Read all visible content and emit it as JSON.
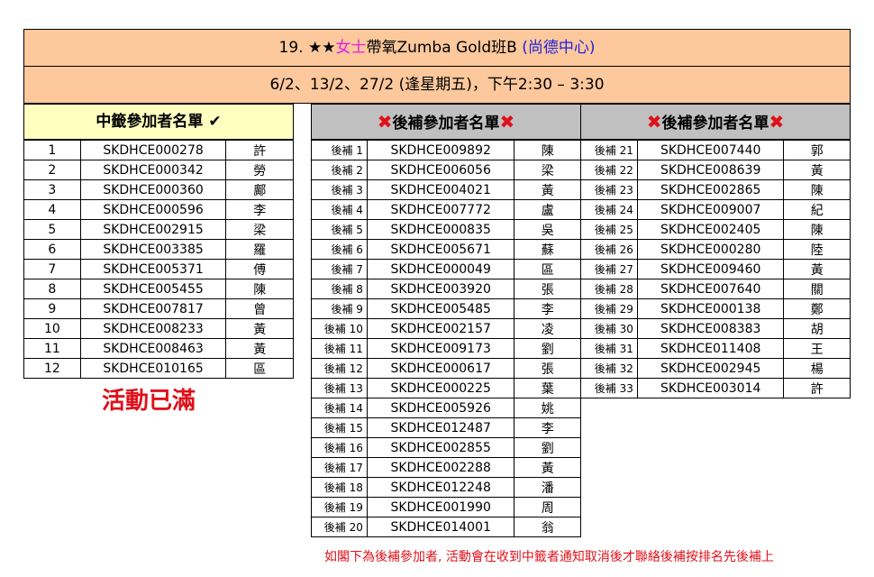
{
  "header": {
    "prefix": "19. ★★",
    "ladies": "女士",
    "course": "帶氧Zumba Gold班B ",
    "venue": "(尚德中心)",
    "schedule": "6/2、13/2、27/2 (逢星期五)，下午2:30 – 3:30"
  },
  "sections": {
    "selected": "中籤參加者名單",
    "waitlist_a": "後補參加者名單",
    "waitlist_b": "後補參加者名單",
    "check_icon": "✔",
    "cross_icon": "✖"
  },
  "colors": {
    "header_bg": "#fcc89c",
    "selected_bg": "#ffffc0",
    "waitlist_bg": "#c0c0c0",
    "alert": "#e0101a"
  },
  "selected": [
    [
      "1",
      "SKDHCE000278",
      "許"
    ],
    [
      "2",
      "SKDHCE000342",
      "勞"
    ],
    [
      "3",
      "SKDHCE000360",
      "鄺"
    ],
    [
      "4",
      "SKDHCE000596",
      "李"
    ],
    [
      "5",
      "SKDHCE002915",
      "梁"
    ],
    [
      "6",
      "SKDHCE003385",
      "羅"
    ],
    [
      "7",
      "SKDHCE005371",
      "傅"
    ],
    [
      "8",
      "SKDHCE005455",
      "陳"
    ],
    [
      "9",
      "SKDHCE007817",
      "曾"
    ],
    [
      "10",
      "SKDHCE008233",
      "黃"
    ],
    [
      "11",
      "SKDHCE008463",
      "黃"
    ],
    [
      "12",
      "SKDHCE010165",
      "區"
    ]
  ],
  "waitlist_a": [
    [
      "後補 1",
      "SKDHCE009892",
      "陳"
    ],
    [
      "後補 2",
      "SKDHCE006056",
      "梁"
    ],
    [
      "後補 3",
      "SKDHCE004021",
      "黃"
    ],
    [
      "後補 4",
      "SKDHCE007772",
      "盧"
    ],
    [
      "後補 5",
      "SKDHCE000835",
      "吳"
    ],
    [
      "後補 6",
      "SKDHCE005671",
      "蘇"
    ],
    [
      "後補 7",
      "SKDHCE000049",
      "區"
    ],
    [
      "後補 8",
      "SKDHCE003920",
      "張"
    ],
    [
      "後補 9",
      "SKDHCE005485",
      "李"
    ],
    [
      "後補 10",
      "SKDHCE002157",
      "凌"
    ],
    [
      "後補 11",
      "SKDHCE009173",
      "劉"
    ],
    [
      "後補 12",
      "SKDHCE000617",
      "張"
    ],
    [
      "後補 13",
      "SKDHCE000225",
      "葉"
    ],
    [
      "後補 14",
      "SKDHCE005926",
      "姚"
    ],
    [
      "後補 15",
      "SKDHCE012487",
      "李"
    ],
    [
      "後補 16",
      "SKDHCE002855",
      "劉"
    ],
    [
      "後補 17",
      "SKDHCE002288",
      "黃"
    ],
    [
      "後補 18",
      "SKDHCE012248",
      "潘"
    ],
    [
      "後補 19",
      "SKDHCE001990",
      "周"
    ],
    [
      "後補 20",
      "SKDHCE014001",
      "翁"
    ]
  ],
  "waitlist_b": [
    [
      "後補 21",
      "SKDHCE007440",
      "郭"
    ],
    [
      "後補 22",
      "SKDHCE008639",
      "黃"
    ],
    [
      "後補 23",
      "SKDHCE002865",
      "陳"
    ],
    [
      "後補 24",
      "SKDHCE009007",
      "紀"
    ],
    [
      "後補 25",
      "SKDHCE002405",
      "陳"
    ],
    [
      "後補 26",
      "SKDHCE000280",
      "陸"
    ],
    [
      "後補 27",
      "SKDHCE009460",
      "黃"
    ],
    [
      "後補 28",
      "SKDHCE007640",
      "關"
    ],
    [
      "後補 29",
      "SKDHCE000138",
      "鄭"
    ],
    [
      "後補 30",
      "SKDHCE008383",
      "胡"
    ],
    [
      "後補 31",
      "SKDHCE011408",
      "王"
    ],
    [
      "後補 32",
      "SKDHCE002945",
      "楊"
    ],
    [
      "後補 33",
      "SKDHCE003014",
      "許"
    ]
  ],
  "status": "活動已滿",
  "footer_note": "如閣下為後補參加者, 活動會在收到中籤者通知取消後才聯絡後補按排名先後補上"
}
